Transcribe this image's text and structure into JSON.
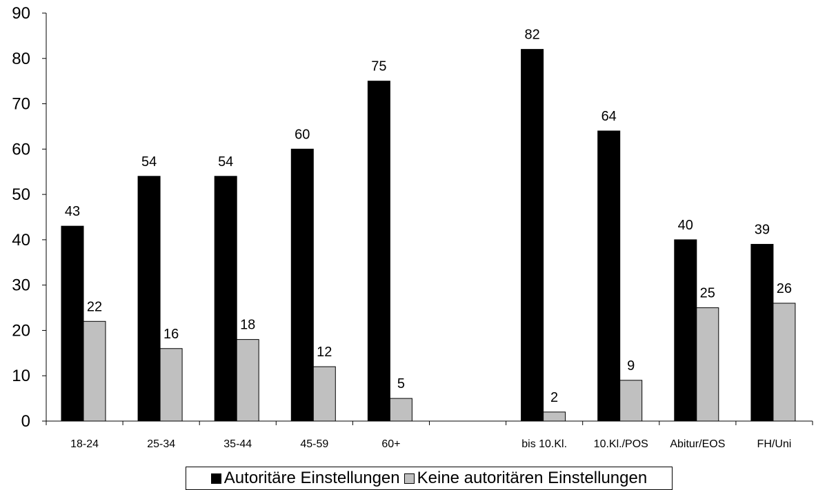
{
  "chart_data": {
    "type": "bar",
    "categories": [
      "18-24",
      "25-34",
      "35-44",
      "45-59",
      "60+",
      "",
      "bis 10.Kl.",
      "10.Kl./POS",
      "Abitur/EOS",
      "FH/Uni"
    ],
    "series": [
      {
        "name": "Autoritäre Einstellungen",
        "color": "#000000",
        "values": [
          43,
          54,
          54,
          60,
          75,
          null,
          82,
          64,
          40,
          39
        ]
      },
      {
        "name": "Keine autoritären Einstellungen",
        "color": "#c0c0c0",
        "values": [
          22,
          16,
          18,
          12,
          5,
          null,
          2,
          9,
          25,
          26
        ]
      }
    ],
    "ylim": [
      0,
      90
    ],
    "yticks": [
      0,
      10,
      20,
      30,
      40,
      50,
      60,
      70,
      80,
      90
    ],
    "grid": false,
    "legend": "bottom"
  }
}
